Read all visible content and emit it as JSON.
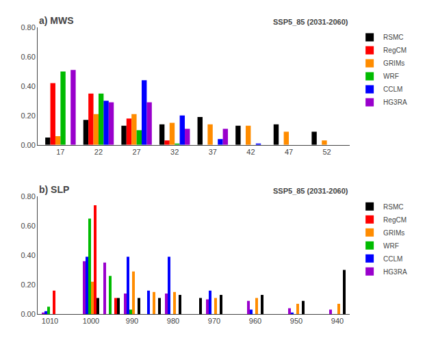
{
  "chart_data": [
    {
      "type": "bar",
      "title": "a) MWS",
      "subtitle": "SSP5_85 (2031-2060)",
      "x": [
        17,
        22,
        27,
        32,
        37,
        42,
        47,
        52
      ],
      "series": [
        {
          "name": "RSMC",
          "color": "#000000",
          "values": [
            0.05,
            0.17,
            0.13,
            0.14,
            0.19,
            0.13,
            0.14,
            0.09
          ]
        },
        {
          "name": "RegCM",
          "color": "#ff0000",
          "values": [
            0.42,
            0.35,
            0.18,
            0.03,
            0.0,
            0.0,
            0.0,
            0.0
          ]
        },
        {
          "name": "GRIMs",
          "color": "#ff8c00",
          "values": [
            0.06,
            0.21,
            0.21,
            0.15,
            0.14,
            0.13,
            0.09,
            0.03
          ]
        },
        {
          "name": "WRF",
          "color": "#00bb00",
          "values": [
            0.5,
            0.35,
            0.1,
            0.01,
            0.0,
            0.0,
            0.0,
            0.0
          ]
        },
        {
          "name": "CCLM",
          "color": "#0000ff",
          "values": [
            0.0,
            0.3,
            0.44,
            0.2,
            0.04,
            0.01,
            0.0,
            0.0
          ]
        },
        {
          "name": "HG3RA",
          "color": "#9900cc",
          "values": [
            0.51,
            0.29,
            0.29,
            0.11,
            0.11,
            0.0,
            0.0,
            0.0
          ]
        }
      ],
      "xlim": [
        14.0,
        55.0
      ],
      "xticks": [
        17,
        22,
        27,
        32,
        37,
        42,
        47,
        52
      ],
      "ylim": [
        0,
        0.8
      ],
      "yticks": [
        {
          "value": 0.0,
          "label": "0.00"
        },
        {
          "value": 0.2,
          "label": "0.20"
        },
        {
          "value": 0.4,
          "label": "0.40"
        },
        {
          "value": 0.6,
          "label": "0.60"
        },
        {
          "value": 0.8,
          "label": "0.80"
        }
      ],
      "grid": false,
      "legend": "upper right"
    },
    {
      "type": "bar",
      "title": "b) SLP",
      "subtitle": "SSP5_85 (2031-2060)",
      "x": [
        1010,
        1005,
        1000,
        995,
        990,
        985,
        980,
        975,
        970,
        965,
        960,
        955,
        950,
        945,
        940
      ],
      "series": [
        {
          "name": "RSMC",
          "color": "#000000",
          "values": [
            0.0,
            0.0,
            0.11,
            0.11,
            0.11,
            0.11,
            0.13,
            0.11,
            0.13,
            0.0,
            0.13,
            0.0,
            0.09,
            0.0,
            0.3
          ]
        },
        {
          "name": "RegCM",
          "color": "#ff0000",
          "values": [
            0.16,
            0.0,
            0.74,
            0.11,
            0.0,
            0.0,
            0.0,
            0.0,
            0.0,
            0.0,
            0.0,
            0.0,
            0.0,
            0.0,
            0.0
          ]
        },
        {
          "name": "GRIMs",
          "color": "#ff8c00",
          "values": [
            0.0,
            0.0,
            0.22,
            0.0,
            0.29,
            0.15,
            0.15,
            0.0,
            0.11,
            0.0,
            0.11,
            0.0,
            0.07,
            0.0,
            0.07
          ]
        },
        {
          "name": "WRF",
          "color": "#00bb00",
          "values": [
            0.05,
            0.0,
            0.65,
            0.26,
            0.03,
            0.0,
            0.0,
            0.0,
            0.0,
            0.0,
            0.0,
            0.0,
            0.0,
            0.0,
            0.0
          ]
        },
        {
          "name": "CCLM",
          "color": "#0000ff",
          "values": [
            0.02,
            0.0,
            0.39,
            0.0,
            0.39,
            0.16,
            0.39,
            0.0,
            0.16,
            0.0,
            0.03,
            0.0,
            0.01,
            0.0,
            0.0
          ]
        },
        {
          "name": "HG3RA",
          "color": "#9900cc",
          "values": [
            0.01,
            0.0,
            0.36,
            0.35,
            0.14,
            0.0,
            0.14,
            0.0,
            0.1,
            0.0,
            0.09,
            0.0,
            0.04,
            0.0,
            0.03
          ]
        }
      ],
      "xlim": [
        1013.0,
        937.0
      ],
      "xticks": [
        1010,
        1000,
        990,
        980,
        970,
        960,
        950,
        940
      ],
      "ylim": [
        0,
        0.8
      ],
      "yticks": [
        {
          "value": 0.0,
          "label": "0.00"
        },
        {
          "value": 0.2,
          "label": "0.20"
        },
        {
          "value": 0.4,
          "label": "0.40"
        },
        {
          "value": 0.6,
          "label": "0.60"
        },
        {
          "value": 0.8,
          "label": "0.80"
        }
      ],
      "grid": false,
      "legend": "upper right"
    }
  ]
}
